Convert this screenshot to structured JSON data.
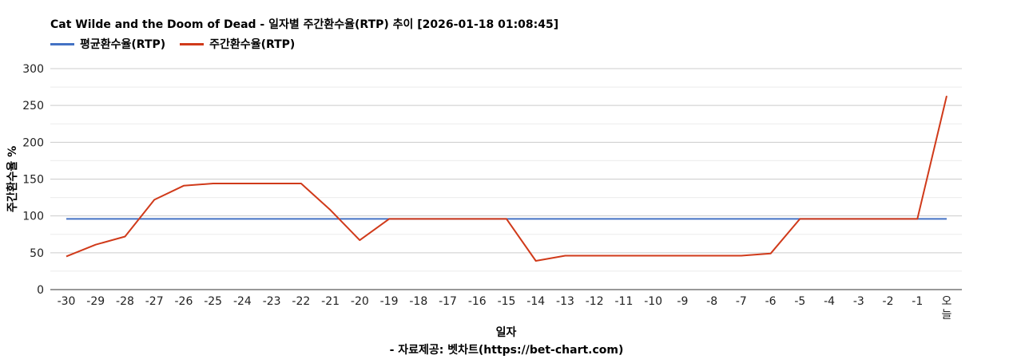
{
  "chart_data": {
    "type": "line",
    "title": "Cat Wilde and the Doom of Dead - 일자별 주간환수율(RTP) 추이 [2026-01-18 01:08:45]",
    "xlabel": "일자",
    "ylabel": "주간환수율 %",
    "categories": [
      "-30",
      "-29",
      "-28",
      "-27",
      "-26",
      "-25",
      "-24",
      "-23",
      "-22",
      "-21",
      "-20",
      "-19",
      "-18",
      "-17",
      "-16",
      "-15",
      "-14",
      "-13",
      "-12",
      "-11",
      "-10",
      "-9",
      "-8",
      "-7",
      "-6",
      "-5",
      "-4",
      "-3",
      "-2",
      "-1",
      "오늘"
    ],
    "ylim": [
      0,
      300
    ],
    "yticks": [
      0,
      50,
      100,
      150,
      200,
      250,
      300
    ],
    "grid": true,
    "legend_position": "top-left",
    "series": [
      {
        "name": "평균환수율(RTP)",
        "color": "#4472C4",
        "values": [
          96,
          96,
          96,
          96,
          96,
          96,
          96,
          96,
          96,
          96,
          96,
          96,
          96,
          96,
          96,
          96,
          96,
          96,
          96,
          96,
          96,
          96,
          96,
          96,
          96,
          96,
          96,
          96,
          96,
          96,
          96
        ]
      },
      {
        "name": "주간환수율(RTP)",
        "color": "#D03A1A",
        "values": [
          45,
          61,
          72,
          122,
          141,
          144,
          144,
          144,
          144,
          108,
          67,
          96,
          96,
          96,
          96,
          96,
          39,
          46,
          46,
          46,
          46,
          46,
          46,
          46,
          49,
          96,
          96,
          96,
          96,
          96,
          263
        ]
      }
    ],
    "source": "- 자료제공: 벳차트(https://bet-chart.com)"
  }
}
